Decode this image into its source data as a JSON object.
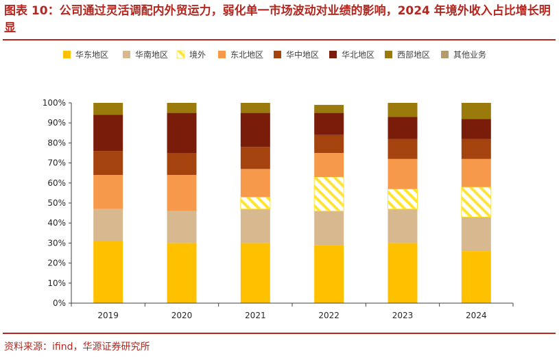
{
  "title": "图表 10：公司通过灵活调配内外贸运力，弱化单一市场波动对业绩的影响，2024 年境外收入占比增长明显",
  "source": "资料来源：ifind，华源证券研究所",
  "chart_data": {
    "type": "bar",
    "stacked": true,
    "categories": [
      "2019",
      "2020",
      "2021",
      "2022",
      "2023",
      "2024"
    ],
    "ylim": [
      0,
      100
    ],
    "yticks": [
      "0%",
      "10%",
      "20%",
      "30%",
      "40%",
      "50%",
      "60%",
      "70%",
      "80%",
      "90%",
      "100%"
    ],
    "legend_position": "top",
    "series": [
      {
        "name": "华东地区",
        "color": "#ffc000",
        "values": [
          31,
          30,
          30,
          29,
          30,
          26
        ]
      },
      {
        "name": "华南地区",
        "color": "#d8b98f",
        "values": [
          16,
          16,
          17,
          17,
          17,
          17
        ]
      },
      {
        "name": "境外",
        "color": "#ffffff",
        "pattern": "hatch",
        "values": [
          0,
          0,
          6,
          17,
          10,
          15
        ]
      },
      {
        "name": "东北地区",
        "color": "#f7994a",
        "values": [
          17,
          18,
          14,
          12,
          15,
          14
        ]
      },
      {
        "name": "华中地区",
        "color": "#a4430e",
        "values": [
          12,
          11,
          11,
          9,
          10,
          10
        ]
      },
      {
        "name": "华北地区",
        "color": "#7a1c0a",
        "values": [
          18,
          20,
          17,
          11,
          11,
          10
        ]
      },
      {
        "name": "西部地区",
        "color": "#9a7a0a",
        "values": [
          6,
          5,
          5,
          4,
          7,
          8
        ]
      },
      {
        "name": "其他业务",
        "color": "#b59a6a",
        "values": [
          0,
          0,
          0,
          0,
          0,
          0
        ]
      }
    ]
  }
}
